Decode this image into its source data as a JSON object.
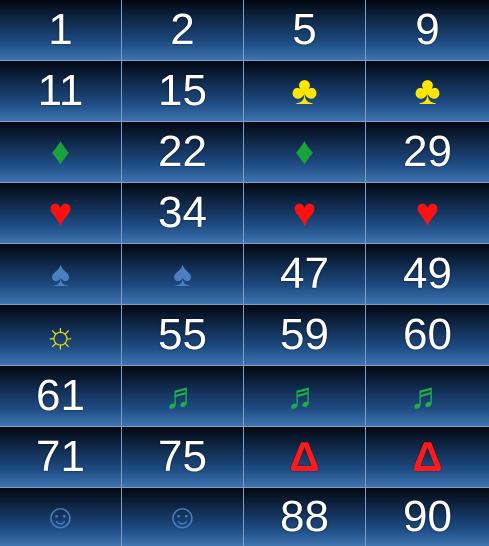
{
  "board": {
    "colors": {
      "number": "#ffffff",
      "club": "#ffe600",
      "diamond": "#1aa33a",
      "heart": "#ff1010",
      "spade": "#4a7fc0",
      "sun": "#f2e400",
      "note": "#1fb04a",
      "delta": "#ff1a1a",
      "smiley": "#4a7fc0"
    },
    "rows": [
      [
        {
          "kind": "number",
          "text": "1"
        },
        {
          "kind": "number",
          "text": "2"
        },
        {
          "kind": "number",
          "text": "5"
        },
        {
          "kind": "number",
          "text": "9"
        }
      ],
      [
        {
          "kind": "number",
          "text": "11"
        },
        {
          "kind": "number",
          "text": "15"
        },
        {
          "kind": "symbol",
          "icon": "club-icon",
          "glyph": "♣",
          "color": "#ffe600"
        },
        {
          "kind": "symbol",
          "icon": "club-icon",
          "glyph": "♣",
          "color": "#ffe600"
        }
      ],
      [
        {
          "kind": "symbol",
          "icon": "diamond-icon",
          "glyph": "♦",
          "color": "#1aa33a"
        },
        {
          "kind": "number",
          "text": "22"
        },
        {
          "kind": "symbol",
          "icon": "diamond-icon",
          "glyph": "♦",
          "color": "#1aa33a"
        },
        {
          "kind": "number",
          "text": "29"
        }
      ],
      [
        {
          "kind": "symbol",
          "icon": "heart-icon",
          "glyph": "♥",
          "color": "#ff1010"
        },
        {
          "kind": "number",
          "text": "34"
        },
        {
          "kind": "symbol",
          "icon": "heart-icon",
          "glyph": "♥",
          "color": "#ff1010"
        },
        {
          "kind": "symbol",
          "icon": "heart-icon",
          "glyph": "♥",
          "color": "#ff1010"
        }
      ],
      [
        {
          "kind": "symbol",
          "icon": "spade-icon",
          "glyph": "♠",
          "color": "#4a7fc0"
        },
        {
          "kind": "symbol",
          "icon": "spade-icon",
          "glyph": "♠",
          "color": "#4a7fc0"
        },
        {
          "kind": "number",
          "text": "47"
        },
        {
          "kind": "number",
          "text": "49"
        }
      ],
      [
        {
          "kind": "symbol",
          "icon": "sun-icon",
          "glyph": "☼",
          "color": "#f2e400"
        },
        {
          "kind": "number",
          "text": "55"
        },
        {
          "kind": "number",
          "text": "59"
        },
        {
          "kind": "number",
          "text": "60"
        }
      ],
      [
        {
          "kind": "number",
          "text": "61"
        },
        {
          "kind": "symbol",
          "icon": "music-note-icon",
          "glyph": "♬",
          "color": "#1fb04a"
        },
        {
          "kind": "symbol",
          "icon": "music-note-icon",
          "glyph": "♬",
          "color": "#1fb04a"
        },
        {
          "kind": "symbol",
          "icon": "music-note-icon",
          "glyph": "♬",
          "color": "#1fb04a"
        }
      ],
      [
        {
          "kind": "number",
          "text": "71"
        },
        {
          "kind": "number",
          "text": "75"
        },
        {
          "kind": "symbol",
          "icon": "delta-icon",
          "glyph": "Δ",
          "color": "#ff1a1a"
        },
        {
          "kind": "symbol",
          "icon": "delta-icon",
          "glyph": "Δ",
          "color": "#ff1a1a"
        }
      ],
      [
        {
          "kind": "symbol",
          "icon": "smiley-icon",
          "glyph": "☺",
          "color": "#4a7fc0"
        },
        {
          "kind": "symbol",
          "icon": "smiley-icon",
          "glyph": "☺",
          "color": "#4a7fc0"
        },
        {
          "kind": "number",
          "text": "88"
        },
        {
          "kind": "number",
          "text": "90"
        }
      ]
    ]
  }
}
